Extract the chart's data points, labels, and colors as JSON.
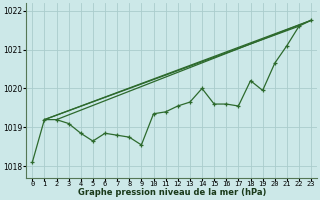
{
  "title": "Graphe pression niveau de la mer (hPa)",
  "background_color": "#cce8e8",
  "grid_color": "#aacccc",
  "line_color": "#2d6a2d",
  "marker_color": "#2d6a2d",
  "xlim": [
    -0.5,
    23.5
  ],
  "ylim": [
    1017.7,
    1022.2
  ],
  "yticks": [
    1018,
    1019,
    1020,
    1021,
    1022
  ],
  "xtick_labels": [
    "0",
    "1",
    "2",
    "3",
    "4",
    "5",
    "6",
    "7",
    "8",
    "9",
    "10",
    "11",
    "12",
    "13",
    "14",
    "15",
    "16",
    "17",
    "18",
    "19",
    "20",
    "21",
    "22",
    "23"
  ],
  "main_line": [
    1018.1,
    1019.2,
    1019.2,
    1019.1,
    1018.85,
    1018.65,
    1018.85,
    1018.8,
    1018.75,
    1018.55,
    1019.35,
    1019.4,
    1019.55,
    1019.65,
    1020.0,
    1019.6,
    1019.6,
    1019.55,
    1020.2,
    1019.95,
    1020.65,
    1021.1,
    1021.6,
    1021.75
  ],
  "trend_lines": [
    {
      "x0": 1,
      "y0": 1019.2,
      "x1": 23,
      "y1": 1021.75
    },
    {
      "x0": 1,
      "y0": 1019.2,
      "x1": 22,
      "y1": 1021.6
    },
    {
      "x0": 2,
      "y0": 1019.2,
      "x1": 23,
      "y1": 1021.75
    }
  ]
}
